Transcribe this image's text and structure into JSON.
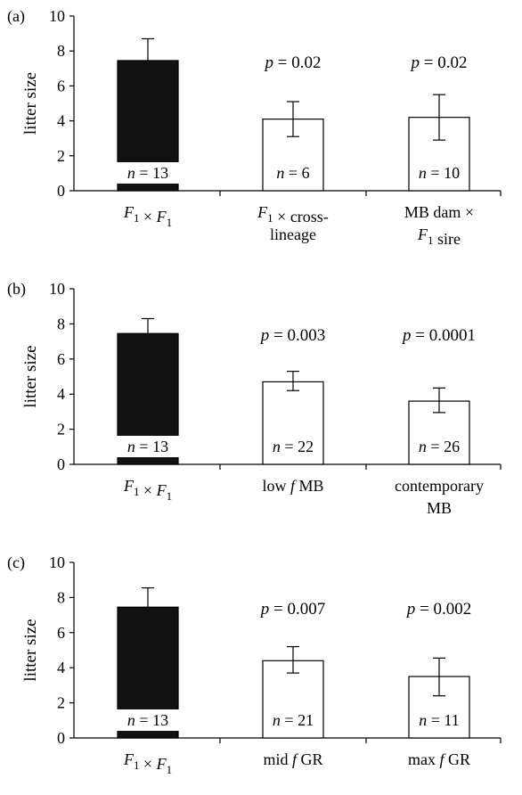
{
  "colors": {
    "filled_bar": "#111111",
    "open_bar": "#ffffff",
    "axis": "#000000"
  },
  "chart_data": [
    {
      "type": "bar",
      "panel_label": "(a)",
      "ylabel": "litter size",
      "ylim": [
        0,
        10
      ],
      "yticks": [
        0,
        2,
        4,
        6,
        8,
        10
      ],
      "grid": false,
      "bars": [
        {
          "label_lines": [
            "F1 × F1"
          ],
          "value": 7.45,
          "err_upper": 8.7,
          "err_lower": null,
          "fill": "filled",
          "n_label": "n = 13",
          "p_label": ""
        },
        {
          "label_lines": [
            "F1 × cross-",
            "lineage"
          ],
          "value": 4.1,
          "err_upper": 5.1,
          "err_lower": 3.1,
          "fill": "open",
          "n_label": "n = 6",
          "p_label": "p = 0.02"
        },
        {
          "label_lines": [
            "MB dam ×",
            "F1 sire"
          ],
          "value": 4.2,
          "err_upper": 5.5,
          "err_lower": 2.9,
          "fill": "open",
          "n_label": "n = 10",
          "p_label": "p = 0.02"
        }
      ]
    },
    {
      "type": "bar",
      "panel_label": "(b)",
      "ylabel": "litter size",
      "ylim": [
        0,
        10
      ],
      "yticks": [
        0,
        2,
        4,
        6,
        8,
        10
      ],
      "grid": false,
      "bars": [
        {
          "label_lines": [
            "F1 × F1"
          ],
          "value": 7.45,
          "err_upper": 8.3,
          "err_lower": null,
          "fill": "filled",
          "n_label": "n = 13",
          "p_label": ""
        },
        {
          "label_lines": [
            "low f MB"
          ],
          "value": 4.7,
          "err_upper": 5.3,
          "err_lower": 4.2,
          "fill": "open",
          "n_label": "n = 22",
          "p_label": "p = 0.003"
        },
        {
          "label_lines": [
            "contemporary",
            "MB"
          ],
          "value": 3.6,
          "err_upper": 4.35,
          "err_lower": 2.95,
          "fill": "open",
          "n_label": "n = 26",
          "p_label": "p = 0.0001"
        }
      ]
    },
    {
      "type": "bar",
      "panel_label": "(c)",
      "ylabel": "litter size",
      "ylim": [
        0,
        10
      ],
      "yticks": [
        0,
        2,
        4,
        6,
        8,
        10
      ],
      "grid": false,
      "bars": [
        {
          "label_lines": [
            "F1 × F1"
          ],
          "value": 7.45,
          "err_upper": 8.55,
          "err_lower": null,
          "fill": "filled",
          "n_label": "n = 13",
          "p_label": ""
        },
        {
          "label_lines": [
            "mid f GR"
          ],
          "value": 4.4,
          "err_upper": 5.2,
          "err_lower": 3.7,
          "fill": "open",
          "n_label": "n = 21",
          "p_label": "p = 0.007"
        },
        {
          "label_lines": [
            "max f GR"
          ],
          "value": 3.5,
          "err_upper": 4.55,
          "err_lower": 2.4,
          "fill": "open",
          "n_label": "n = 11",
          "p_label": "p = 0.002"
        }
      ]
    }
  ]
}
